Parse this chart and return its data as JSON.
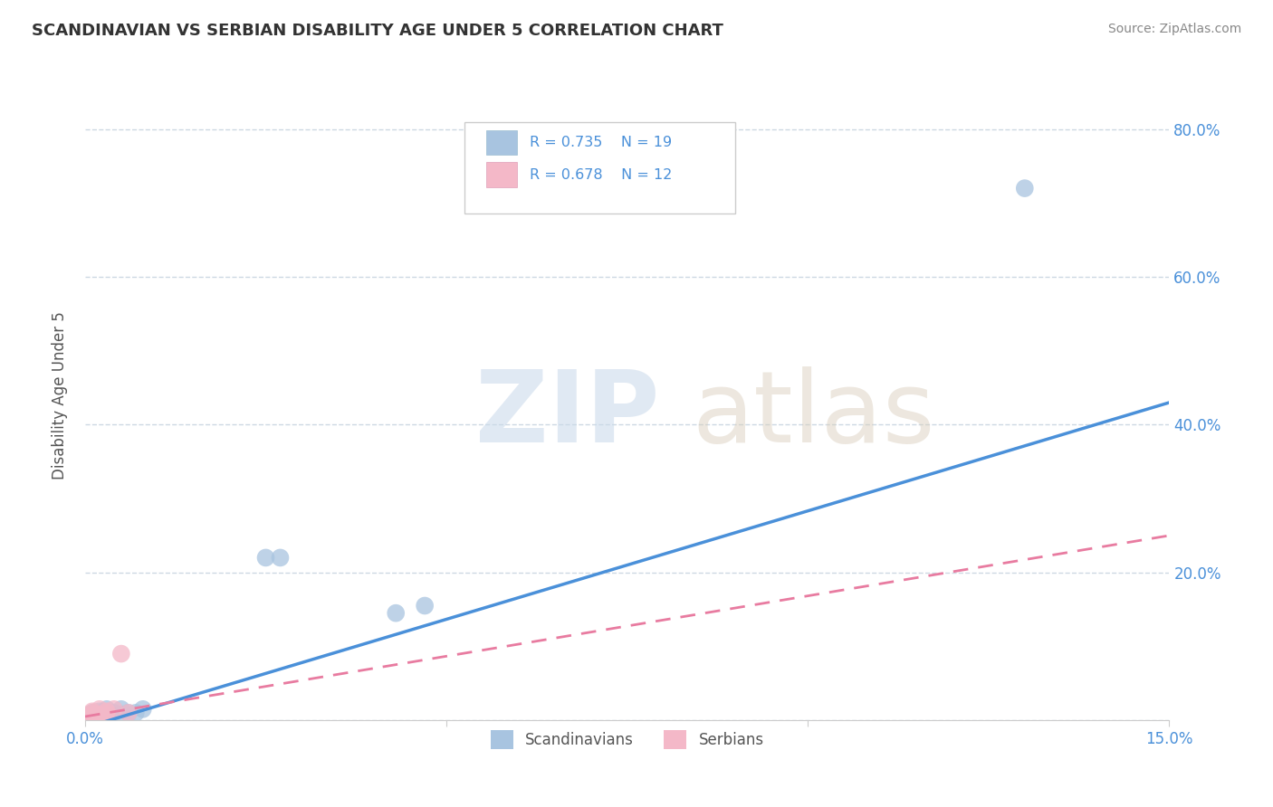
{
  "title": "SCANDINAVIAN VS SERBIAN DISABILITY AGE UNDER 5 CORRELATION CHART",
  "source": "Source: ZipAtlas.com",
  "ylabel": "Disability Age Under 5",
  "xlim": [
    0.0,
    0.15
  ],
  "ylim": [
    0.0,
    0.88
  ],
  "xticks": [
    0.0,
    0.05,
    0.1,
    0.15
  ],
  "xtick_labels": [
    "0.0%",
    "",
    "",
    "15.0%"
  ],
  "ytick_labels_right": [
    "20.0%",
    "40.0%",
    "60.0%",
    "80.0%"
  ],
  "yticks_right": [
    0.2,
    0.4,
    0.6,
    0.8
  ],
  "scandinavian_color": "#a8c4e0",
  "serbian_color": "#f4b8c8",
  "trend_blue": "#4a90d9",
  "trend_pink": "#e87ba0",
  "background_color": "#ffffff",
  "grid_color": "#c8d4e0",
  "title_color": "#333333",
  "axis_label_color": "#555555",
  "source_color": "#888888",
  "tick_color": "#4a90d9",
  "scandinavians_x": [
    0.001,
    0.001,
    0.001,
    0.002,
    0.002,
    0.002,
    0.003,
    0.003,
    0.004,
    0.005,
    0.005,
    0.006,
    0.007,
    0.008,
    0.025,
    0.027,
    0.043,
    0.047,
    0.13
  ],
  "scandinavians_y": [
    0.005,
    0.008,
    0.01,
    0.005,
    0.01,
    0.012,
    0.008,
    0.015,
    0.01,
    0.008,
    0.015,
    0.01,
    0.01,
    0.015,
    0.22,
    0.22,
    0.145,
    0.155,
    0.72
  ],
  "serbians_x": [
    0.001,
    0.001,
    0.001,
    0.001,
    0.002,
    0.002,
    0.002,
    0.003,
    0.003,
    0.004,
    0.005,
    0.006
  ],
  "serbians_y": [
    0.005,
    0.008,
    0.01,
    0.012,
    0.005,
    0.008,
    0.015,
    0.01,
    0.012,
    0.015,
    0.09,
    0.01
  ],
  "trend_sc_x0": 0.0,
  "trend_sc_y0": -0.01,
  "trend_sc_x1": 0.15,
  "trend_sc_y1": 0.43,
  "trend_sr_x0": 0.0,
  "trend_sr_y0": 0.005,
  "trend_sr_x1": 0.15,
  "trend_sr_y1": 0.25
}
